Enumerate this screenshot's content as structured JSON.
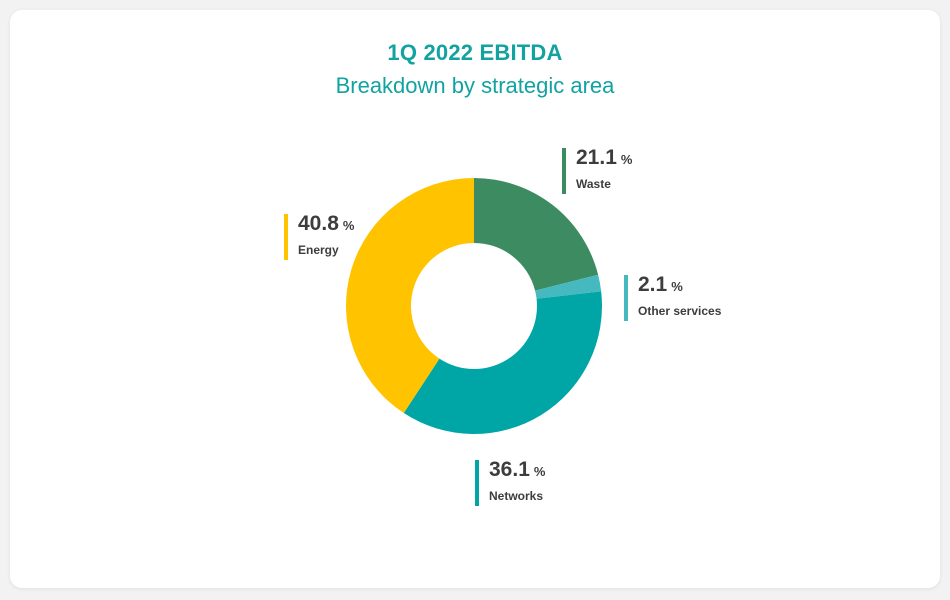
{
  "chart_data": {
    "type": "pie",
    "title": "1Q 2022 EBITDA",
    "subtitle": "Breakdown by strategic area",
    "unit": "%",
    "slices": [
      {
        "label": "Waste",
        "value": 21.1,
        "color": "#3d8b60"
      },
      {
        "label": "Other services",
        "value": 2.1,
        "color": "#45b9bf"
      },
      {
        "label": "Networks",
        "value": 36.1,
        "color": "#00a6a6"
      },
      {
        "label": "Energy",
        "value": 40.8,
        "color": "#ffc300"
      }
    ]
  }
}
